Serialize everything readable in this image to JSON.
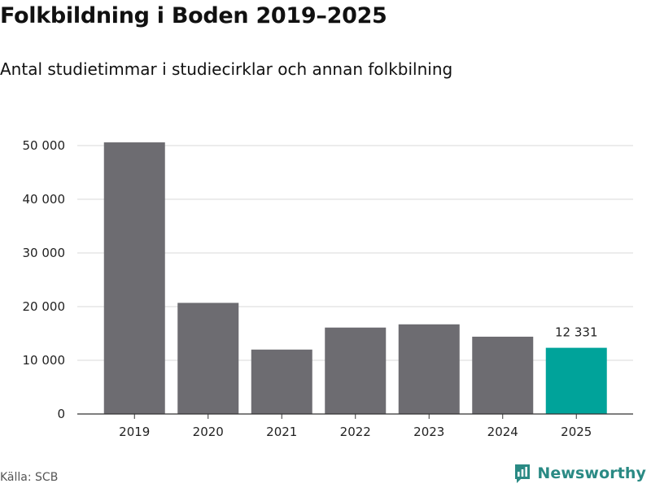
{
  "chart_data": {
    "type": "bar",
    "title": "Folkbildning i Boden 2019–2025",
    "subtitle": "Antal studietimmar i studiecirklar och annan folkbilning",
    "categories": [
      "2019",
      "2020",
      "2021",
      "2022",
      "2023",
      "2024",
      "2025"
    ],
    "values": [
      50600,
      20700,
      12000,
      16100,
      16700,
      14400,
      12331
    ],
    "colors": [
      "#6d6c71",
      "#6d6c71",
      "#6d6c71",
      "#6d6c71",
      "#6d6c71",
      "#6d6c71",
      "#00a39a"
    ],
    "ylim": [
      0,
      50000
    ],
    "yticks": [
      0,
      10000,
      20000,
      30000,
      40000,
      50000
    ],
    "ytick_labels": [
      "0",
      "10 000",
      "20 000",
      "30 000",
      "40 000",
      "50 000"
    ],
    "data_labels": [
      null,
      null,
      null,
      null,
      null,
      null,
      "12 331"
    ],
    "xlabel": "",
    "ylabel": "",
    "grid": true,
    "gridline_color": "#d9d9d9"
  },
  "source": "Källa: SCB",
  "brand": {
    "name": "Newsworthy",
    "icon": "newsworthy-logo-icon",
    "color": "#2a8a84"
  }
}
